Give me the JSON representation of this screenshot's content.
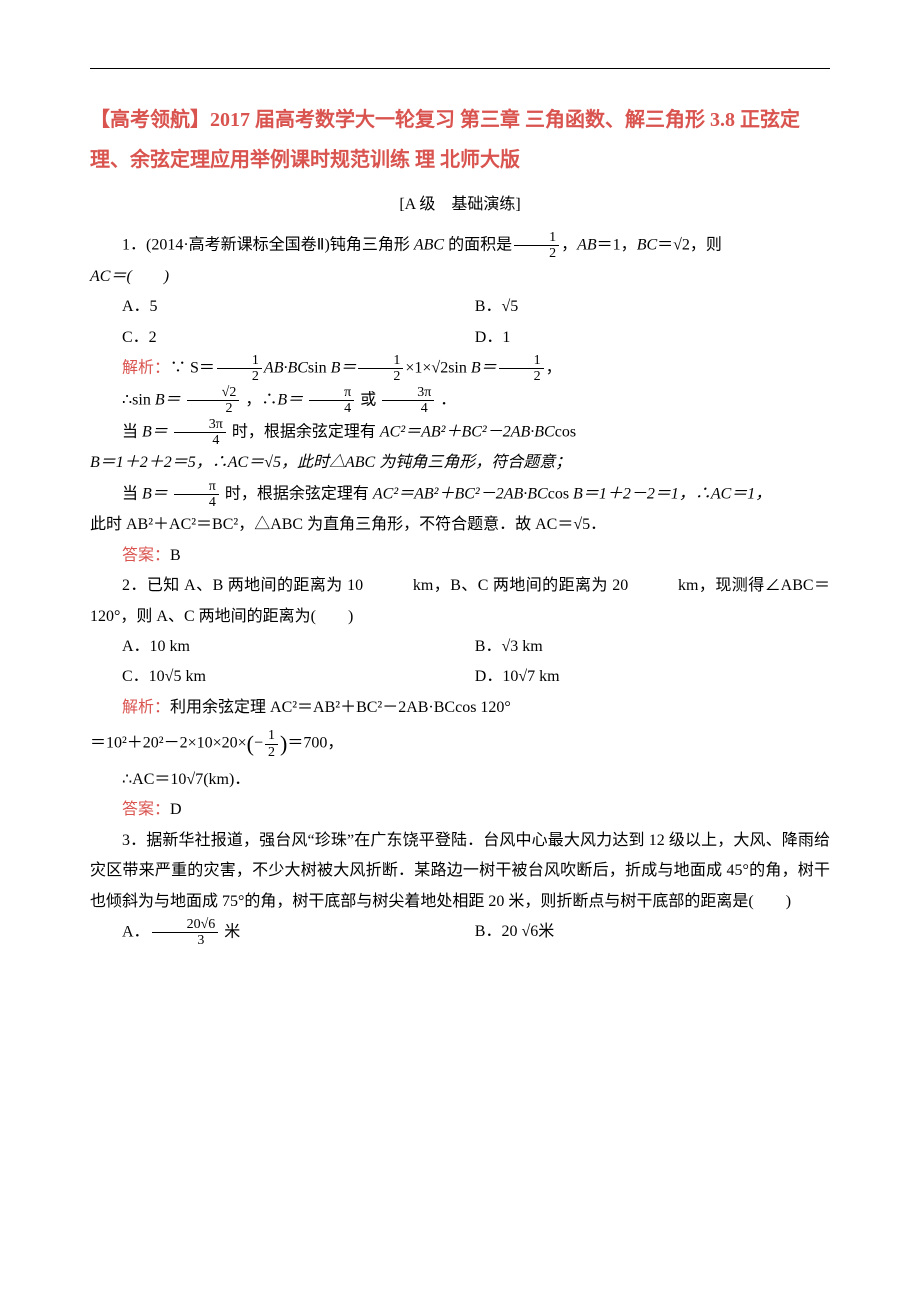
{
  "colors": {
    "accent": "#d9534f",
    "text": "#000000",
    "background": "#ffffff"
  },
  "typography": {
    "body_font": "SimSun",
    "body_size_pt": 12,
    "title_size_pt": 15,
    "title_weight": "bold",
    "line_height": 1.9
  },
  "title": "【高考领航】2017 届高考数学大一轮复习 第三章 三角函数、解三角形 3.8 正弦定理、余弦定理应用举例课时规范训练 理 北师大版",
  "section_label": "[A 级　基础演练]",
  "q1": {
    "stem_prefix": "1．(2014·高考新课标全国卷Ⅱ)钝角三角形 ",
    "stem_mid": " 的面积是",
    "area_frac": {
      "num": "1",
      "den": "2"
    },
    "stem_tail1": "，",
    "ab": "AB",
    "stem_tail2": "＝1，",
    "bc": "BC",
    "stem_tail3": "＝√2，则",
    "ac_line": "AC＝(　　)",
    "opts": {
      "A": "A．5",
      "B": "B．√5",
      "C": "C．2",
      "D": "D．1"
    },
    "analysis_label": "解析：",
    "an1_a": "∵ S＝",
    "frac_half_1": {
      "num": "1",
      "den": "2"
    },
    "an1_b": "AB·BC",
    "an1_c": "sin ",
    "an1_d": "B＝",
    "frac_half_2": {
      "num": "1",
      "den": "2"
    },
    "an1_e": "×1×√2",
    "an1_f": "sin ",
    "an1_g": "B＝",
    "frac_half_3": {
      "num": "1",
      "den": "2"
    },
    "an1_h": "，",
    "an2_a": "∴sin ",
    "an2_b": "B＝ ",
    "frac_r2_2": {
      "num": "√2",
      "den": "2"
    },
    "an2_c": " ，∴",
    "an2_d": "B＝ ",
    "frac_pi4": {
      "num": "π",
      "den": "4"
    },
    "an2_e": " 或 ",
    "frac_3pi4": {
      "num": "3π",
      "den": "4"
    },
    "an2_f": " ．",
    "an3_a": "当 ",
    "an3_b": "B＝ ",
    "frac_3pi4b": {
      "num": "3π",
      "den": "4"
    },
    "an3_c": " 时，根据余弦定理有 ",
    "an3_d": "AC²＝AB²＋BC²－2AB·BC",
    "an3_e": "cos",
    "an4": "B＝1＋2＋2＝5，∴AC＝√5，此时△ABC 为钝角三角形，符合题意；",
    "an5_a": "当 ",
    "an5_b": "B＝ ",
    "frac_pi4b": {
      "num": "π",
      "den": "4"
    },
    "an5_c": " 时，根据余弦定理有 ",
    "an5_d": "AC²＝AB²＋BC²－2AB·BC",
    "an5_e": "cos ",
    "an5_f": "B＝1＋2－2＝1，∴AC＝1，",
    "an6": "此时 AB²＋AC²＝BC²，△ABC 为直角三角形，不符合题意．故 AC＝√5．",
    "answer_label": "答案：",
    "answer": "B"
  },
  "q2": {
    "stem": "2．已知 A、B 两地间的距离为 10　　　km，B、C 两地间的距离为 20　　　km，现测得∠ABC＝120°，则 A、C 两地间的距离为(　　)",
    "opts": {
      "A": "A．10 km",
      "B": "B．√3 km",
      "C": "C．10√5 km",
      "D": "D．10√7 km"
    },
    "analysis_label": "解析：",
    "an1": "利用余弦定理 AC²＝AB²＋BC²－2AB·BCcos 120°",
    "an2_a": "＝10²＋20²－2×10×20×",
    "bigL": "(",
    "neg_half": {
      "num": "1",
      "den": "2"
    },
    "neg": "−",
    "bigR": ")",
    "an2_b": "＝700，",
    "an3": "∴AC＝10√7(km)．",
    "answer_label": "答案：",
    "answer": "D"
  },
  "q3": {
    "stem": "3．据新华社报道，强台风“珍珠”在广东饶平登陆．台风中心最大风力达到 12 级以上，大风、降雨给灾区带来严重的灾害，不少大树被大风折断．某路边一树干被台风吹断后，折成与地面成 45°的角，树干也倾斜为与地面成 75°的角，树干底部与树尖着地处相距 20 米，则折断点与树干底部的距离是(　　)",
    "optA_a": "A．",
    "optA_frac": {
      "num": "20√6",
      "den": "3"
    },
    "optA_b": " 米",
    "optB": "B．20 √6米"
  }
}
